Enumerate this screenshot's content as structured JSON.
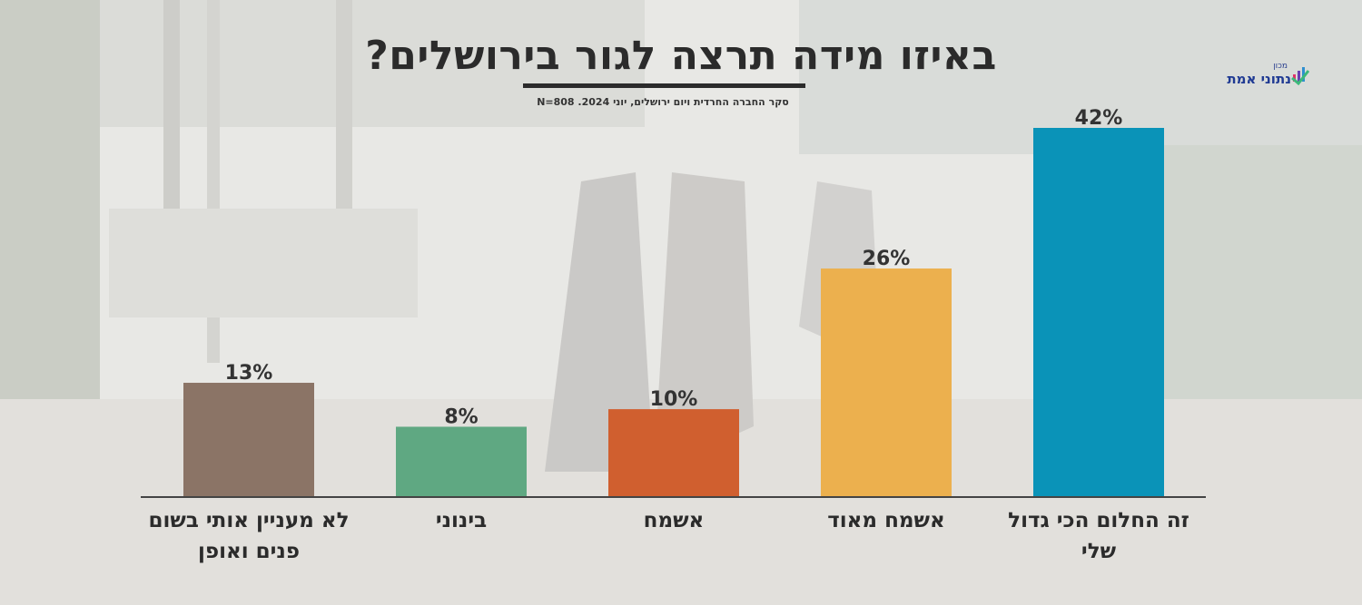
{
  "header": {
    "title": "באיזו מידה תרצה לגור בירושלים?",
    "subtitle": "סקר החברה החרדית ויום ירושלים, יוני 2024. N=808"
  },
  "logo": {
    "small": "מכון",
    "name": "נתוני אמת",
    "icon": "checkmark-bars-icon"
  },
  "chart_data": {
    "type": "bar",
    "title": "באיזו מידה תרצה לגור בירושלים?",
    "categories": [
      [
        "זה החלום הכי גדול",
        "שלי"
      ],
      [
        "אשמח מאוד"
      ],
      [
        "אשמח"
      ],
      [
        "בינוני"
      ],
      [
        "לא מעניין אותי בשום",
        "פנים ואופן"
      ]
    ],
    "values": [
      42,
      26,
      10,
      8,
      13
    ],
    "value_labels": [
      "42%",
      "26%",
      "10%",
      "8%",
      "13%"
    ],
    "colors": [
      "#0a93b8",
      "#ecb04e",
      "#d05f2f",
      "#5fa882",
      "#8b7466"
    ],
    "ylim": [
      0,
      42
    ],
    "grid": false,
    "legend": "none",
    "direction": "rtl"
  }
}
